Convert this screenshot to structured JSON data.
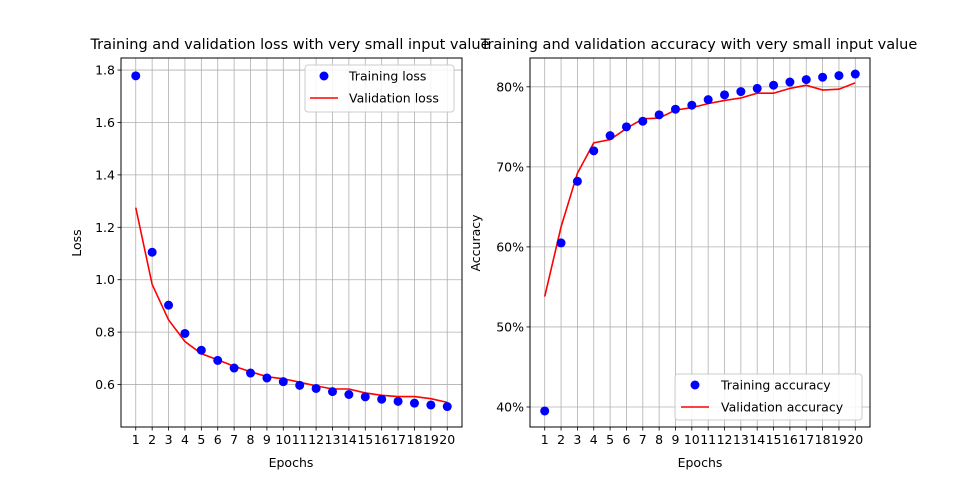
{
  "chart_data": [
    {
      "type": "line",
      "title": "Training and validation loss with very small input value",
      "xlabel": "Epochs",
      "ylabel": "Loss",
      "x": [
        1,
        2,
        3,
        4,
        5,
        6,
        7,
        8,
        9,
        10,
        11,
        12,
        13,
        14,
        15,
        16,
        17,
        18,
        19,
        20
      ],
      "xlim": [
        0.1,
        20.9
      ],
      "ylim": [
        0.438,
        1.846
      ],
      "yticks": [
        0.6,
        0.8,
        1.0,
        1.2,
        1.4,
        1.6,
        1.8
      ],
      "ytick_labels": [
        "0.6",
        "0.8",
        "1.0",
        "1.2",
        "1.4",
        "1.6",
        "1.8"
      ],
      "grid": true,
      "legend_position": "top-right",
      "series": [
        {
          "name": "Training loss",
          "style": "markers",
          "color": "#0000ff",
          "values": [
            1.778,
            1.105,
            0.903,
            0.795,
            0.731,
            0.692,
            0.663,
            0.644,
            0.625,
            0.611,
            0.597,
            0.585,
            0.573,
            0.562,
            0.553,
            0.544,
            0.536,
            0.529,
            0.522,
            0.516
          ]
        },
        {
          "name": "Validation loss",
          "style": "line",
          "color": "#ff0000",
          "values": [
            1.275,
            0.982,
            0.847,
            0.764,
            0.718,
            0.694,
            0.67,
            0.649,
            0.63,
            0.622,
            0.609,
            0.595,
            0.583,
            0.583,
            0.568,
            0.559,
            0.554,
            0.554,
            0.546,
            0.532
          ]
        }
      ]
    },
    {
      "type": "line",
      "title": "Training and validation accuracy with very small input value",
      "xlabel": "Epochs",
      "ylabel": "Accuracy",
      "x": [
        1,
        2,
        3,
        4,
        5,
        6,
        7,
        8,
        9,
        10,
        11,
        12,
        13,
        14,
        15,
        16,
        17,
        18,
        19,
        20
      ],
      "xlim": [
        0.1,
        20.9
      ],
      "ylim": [
        37.5,
        83.6
      ],
      "yticks": [
        40,
        50,
        60,
        70,
        80
      ],
      "ytick_labels": [
        "40%",
        "50%",
        "60%",
        "70%",
        "80%"
      ],
      "grid": true,
      "legend_position": "bottom-right",
      "series": [
        {
          "name": "Training accuracy",
          "style": "markers",
          "color": "#0000ff",
          "values": [
            39.5,
            60.5,
            68.2,
            72.0,
            73.9,
            75.0,
            75.7,
            76.5,
            77.2,
            77.7,
            78.4,
            79.0,
            79.4,
            79.8,
            80.2,
            80.6,
            80.9,
            81.2,
            81.4,
            81.6
          ]
        },
        {
          "name": "Validation accuracy",
          "style": "line",
          "color": "#ff0000",
          "values": [
            53.8,
            62.5,
            69.2,
            73.0,
            73.4,
            74.8,
            76.0,
            76.1,
            77.1,
            77.4,
            77.9,
            78.3,
            78.6,
            79.2,
            79.2,
            79.8,
            80.2,
            79.6,
            79.7,
            80.5
          ]
        }
      ]
    }
  ]
}
